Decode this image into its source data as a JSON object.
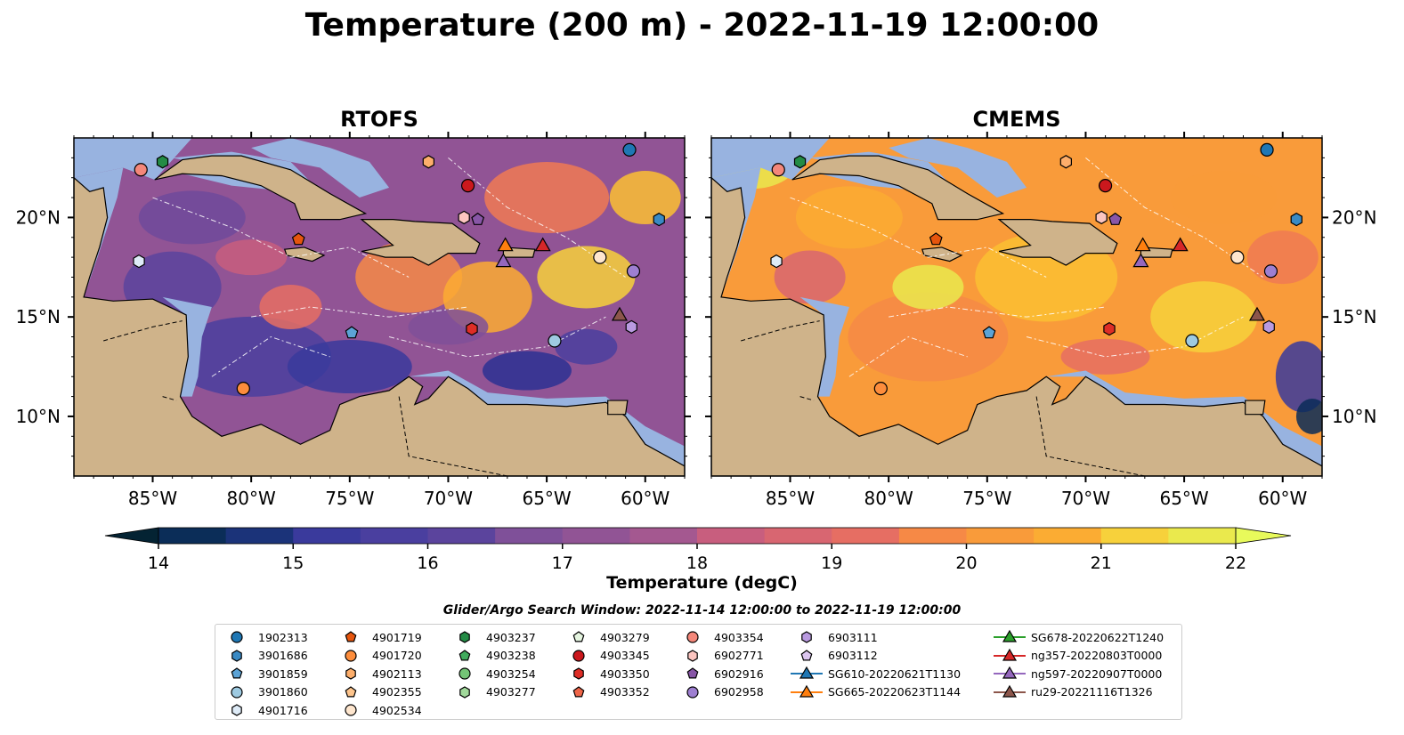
{
  "title": "Temperature (200 m) - 2022-11-19 12:00:00",
  "panels": [
    {
      "title": "RTOFS"
    },
    {
      "title": "CMEMS"
    }
  ],
  "axes": {
    "lon_ticks": [
      "85°W",
      "80°W",
      "75°W",
      "70°W",
      "65°W",
      "60°W"
    ],
    "lat_ticks": [
      "20°N",
      "15°N",
      "10°N"
    ],
    "lon_range": [
      -89,
      -58
    ],
    "lat_range": [
      7,
      24
    ]
  },
  "colorbar": {
    "label": "Temperature (degC)",
    "ticks": [
      "14",
      "15",
      "16",
      "17",
      "18",
      "19",
      "20",
      "21",
      "22"
    ],
    "range": [
      14,
      22
    ],
    "extend": "both",
    "colormap": "thermal",
    "colors": [
      "#042333",
      "#0b2d58",
      "#1b3379",
      "#2c3193",
      "#3a3a9c",
      "#4a3f9f",
      "#5b449d",
      "#6e4a9b",
      "#7f5099",
      "#915495",
      "#a45890",
      "#b65b88",
      "#c85e7e",
      "#d86671",
      "#e66e63",
      "#f07a54",
      "#f68946",
      "#f99b3a",
      "#fbac33",
      "#fbbf33",
      "#f7d13b",
      "#eae94d",
      "#e8fa5b"
    ]
  },
  "legend": {
    "title": "Glider/Argo Search Window: 2022-11-14 12:00:00 to 2022-11-19 12:00:00",
    "columns": [
      [
        {
          "label": "1902313",
          "marker": "circle",
          "color": "#1f77b4"
        },
        {
          "label": "3901686",
          "marker": "hexagon",
          "color": "#3a8ac4"
        },
        {
          "label": "3901859",
          "marker": "pentagon",
          "color": "#5ca3d6"
        },
        {
          "label": "3901860",
          "marker": "circle",
          "color": "#9ecae1"
        },
        {
          "label": "4901716",
          "marker": "hexagon",
          "color": "#deebf7"
        }
      ],
      [
        {
          "label": "4901719",
          "marker": "pentagon",
          "color": "#e6550d"
        },
        {
          "label": "4901720",
          "marker": "circle",
          "color": "#fd8d3c"
        },
        {
          "label": "4902113",
          "marker": "hexagon",
          "color": "#fdae6b"
        },
        {
          "label": "4902355",
          "marker": "pentagon",
          "color": "#fdc48c"
        },
        {
          "label": "4902534",
          "marker": "circle",
          "color": "#fee6ce"
        }
      ],
      [
        {
          "label": "4903237",
          "marker": "hexagon",
          "color": "#238b45"
        },
        {
          "label": "4903238",
          "marker": "pentagon",
          "color": "#41ab5d"
        },
        {
          "label": "4903254",
          "marker": "circle",
          "color": "#74c476"
        },
        {
          "label": "4903277",
          "marker": "hexagon",
          "color": "#a1d99b"
        }
      ],
      [
        {
          "label": "4903279",
          "marker": "pentagon",
          "color": "#e5f5e0"
        },
        {
          "label": "4903345",
          "marker": "circle",
          "color": "#cb181d"
        },
        {
          "label": "4903350",
          "marker": "hexagon",
          "color": "#de2d26"
        },
        {
          "label": "4903352",
          "marker": "pentagon",
          "color": "#ef6548"
        }
      ],
      [
        {
          "label": "4903354",
          "marker": "circle",
          "color": "#f4877a"
        },
        {
          "label": "6902771",
          "marker": "hexagon",
          "color": "#fcc5c0"
        },
        {
          "label": "6902916",
          "marker": "pentagon",
          "color": "#8856a7"
        },
        {
          "label": "6902958",
          "marker": "circle",
          "color": "#9e7fd1"
        }
      ],
      [
        {
          "label": "6903111",
          "marker": "hexagon",
          "color": "#b99ae0"
        },
        {
          "label": "6903112",
          "marker": "pentagon",
          "color": "#dcc6f0"
        },
        {
          "label": "SG610-20220621T1130",
          "marker": "triangle-line",
          "color": "#1f77b4"
        },
        {
          "label": "SG665-20220623T1144",
          "marker": "triangle-line",
          "color": "#ff7f0e"
        }
      ],
      [
        {
          "label": "SG678-20220622T1240",
          "marker": "triangle-line",
          "color": "#2ca02c"
        },
        {
          "label": "ng357-20220803T0000",
          "marker": "triangle-line",
          "color": "#d62728"
        },
        {
          "label": "ng597-20220907T0000",
          "marker": "triangle-line",
          "color": "#9467bd"
        },
        {
          "label": "ru29-20221116T1326",
          "marker": "triangle-line",
          "color": "#8c564b"
        }
      ]
    ]
  },
  "markers": [
    {
      "id": "1902313",
      "marker": "circle",
      "color": "#1f77b4",
      "lon": -60.8,
      "lat": 23.4
    },
    {
      "id": "3901686",
      "marker": "hexagon",
      "color": "#3a8ac4",
      "lon": -59.3,
      "lat": 19.9
    },
    {
      "id": "3901859",
      "marker": "pentagon",
      "color": "#5ca3d6",
      "lon": -74.9,
      "lat": 14.2
    },
    {
      "id": "3901860",
      "marker": "circle",
      "color": "#9ecae1",
      "lon": -64.6,
      "lat": 13.8
    },
    {
      "id": "4901716",
      "marker": "hexagon",
      "color": "#deebf7",
      "lon": -85.7,
      "lat": 17.8
    },
    {
      "id": "4901719",
      "marker": "pentagon",
      "color": "#e6550d",
      "lon": -77.6,
      "lat": 18.9
    },
    {
      "id": "4901720",
      "marker": "circle",
      "color": "#fd8d3c",
      "lon": -80.4,
      "lat": 11.4
    },
    {
      "id": "4902113",
      "marker": "hexagon",
      "color": "#fdae6b",
      "lon": -71.0,
      "lat": 22.8
    },
    {
      "id": "4902534",
      "marker": "circle",
      "color": "#fee6ce",
      "lon": -62.3,
      "lat": 18.0
    },
    {
      "id": "4903237",
      "marker": "hexagon",
      "color": "#238b45",
      "lon": -84.5,
      "lat": 22.8
    },
    {
      "id": "4903345",
      "marker": "circle",
      "color": "#cb181d",
      "lon": -69.0,
      "lat": 21.6
    },
    {
      "id": "4903350",
      "marker": "hexagon",
      "color": "#de2d26",
      "lon": -68.8,
      "lat": 14.4
    },
    {
      "id": "4903354",
      "marker": "circle",
      "color": "#f4877a",
      "lon": -85.6,
      "lat": 22.4
    },
    {
      "id": "6902771",
      "marker": "hexagon",
      "color": "#fcc5c0",
      "lon": -69.2,
      "lat": 20.0
    },
    {
      "id": "6902916",
      "marker": "pentagon",
      "color": "#8856a7",
      "lon": -68.5,
      "lat": 19.9
    },
    {
      "id": "6902958",
      "marker": "circle",
      "color": "#9e7fd1",
      "lon": -60.6,
      "lat": 17.3
    },
    {
      "id": "6903111",
      "marker": "hexagon",
      "color": "#b99ae0",
      "lon": -60.7,
      "lat": 14.5
    },
    {
      "id": "SG665-20220623T1144",
      "marker": "triangle",
      "color": "#ff7f0e",
      "lon": -67.1,
      "lat": 18.6
    },
    {
      "id": "ng357-20220803T0000",
      "marker": "triangle",
      "color": "#d62728",
      "lon": -65.2,
      "lat": 18.6
    },
    {
      "id": "ng597-20220907T0000",
      "marker": "triangle",
      "color": "#9467bd",
      "lon": -67.2,
      "lat": 17.8
    },
    {
      "id": "ru29-20221116T1326",
      "marker": "triangle",
      "color": "#8c564b",
      "lon": -61.3,
      "lat": 15.1
    }
  ]
}
